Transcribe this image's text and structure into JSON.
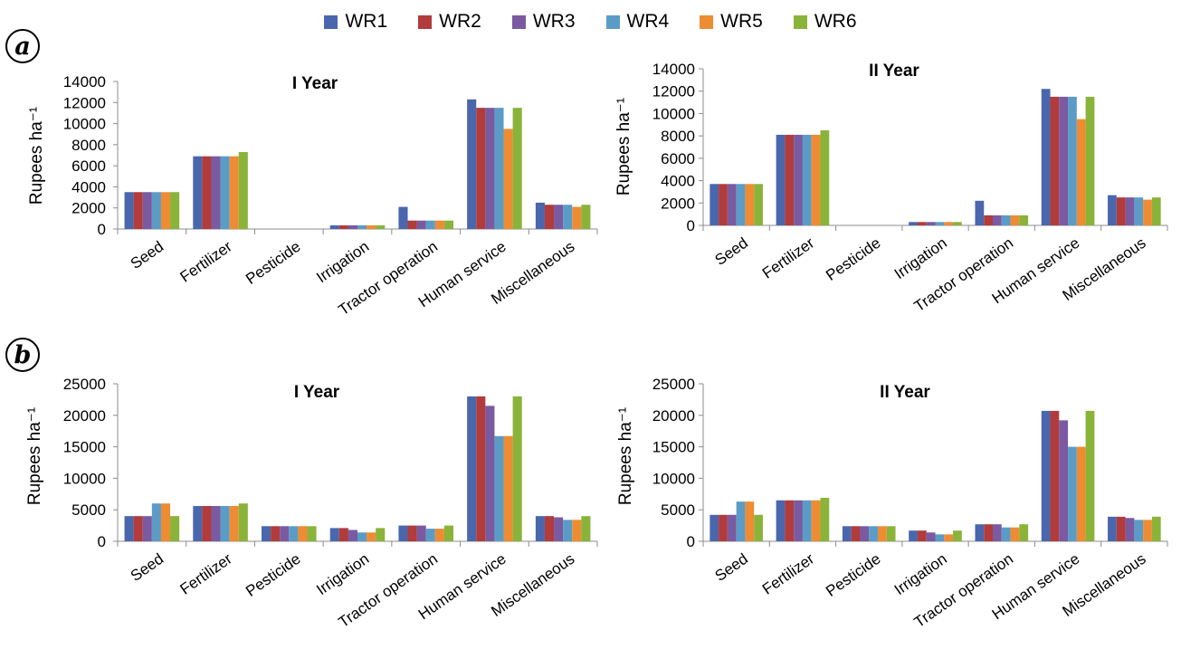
{
  "legend": {
    "items": [
      {
        "name": "WR1",
        "color": "#4a67ad"
      },
      {
        "name": "WR2",
        "color": "#b23b3b"
      },
      {
        "name": "WR3",
        "color": "#7a5aa1"
      },
      {
        "name": "WR4",
        "color": "#5b9cc7"
      },
      {
        "name": "WR5",
        "color": "#ee8c33"
      },
      {
        "name": "WR6",
        "color": "#8ab33a"
      }
    ]
  },
  "panels": {
    "a": "a",
    "b": "b"
  },
  "chart_data": [
    {
      "type": "bar",
      "panel": "a",
      "title": "I Year",
      "ylabel": "Rupees ha⁻¹",
      "ylim": [
        0,
        14000
      ],
      "yticks": [
        "0",
        "2000",
        "4000",
        "6000",
        "8000",
        "10000",
        "12000",
        "14000"
      ],
      "categories": [
        "Seed",
        "Fertilizer",
        "Pesticide",
        "Irrigation",
        "Tractor operation",
        "Human service",
        "Miscellaneous"
      ],
      "series": [
        {
          "name": "WR1",
          "values": [
            3500,
            6900,
            0,
            350,
            2100,
            12300,
            2500
          ]
        },
        {
          "name": "WR2",
          "values": [
            3500,
            6900,
            0,
            350,
            800,
            11500,
            2300
          ]
        },
        {
          "name": "WR3",
          "values": [
            3500,
            6900,
            0,
            350,
            800,
            11500,
            2300
          ]
        },
        {
          "name": "WR4",
          "values": [
            3500,
            6900,
            0,
            350,
            800,
            11500,
            2300
          ]
        },
        {
          "name": "WR5",
          "values": [
            3500,
            6900,
            0,
            350,
            800,
            9500,
            2100
          ]
        },
        {
          "name": "WR6",
          "values": [
            3500,
            7300,
            0,
            350,
            800,
            11500,
            2300
          ]
        }
      ]
    },
    {
      "type": "bar",
      "panel": "a",
      "title": "II Year",
      "ylabel": "Rupees ha⁻¹",
      "ylim": [
        0,
        14000
      ],
      "yticks": [
        "0",
        "2000",
        "4000",
        "6000",
        "8000",
        "10000",
        "12000",
        "14000"
      ],
      "categories": [
        "Seed",
        "Fertilizer",
        "Pesticide",
        "Irrigation",
        "Tractor operation",
        "Human service",
        "Miscellaneous"
      ],
      "series": [
        {
          "name": "WR1",
          "values": [
            3700,
            8100,
            0,
            300,
            2200,
            12200,
            2700
          ]
        },
        {
          "name": "WR2",
          "values": [
            3700,
            8100,
            0,
            300,
            900,
            11500,
            2500
          ]
        },
        {
          "name": "WR3",
          "values": [
            3700,
            8100,
            0,
            300,
            900,
            11500,
            2500
          ]
        },
        {
          "name": "WR4",
          "values": [
            3700,
            8100,
            0,
            300,
            900,
            11500,
            2500
          ]
        },
        {
          "name": "WR5",
          "values": [
            3700,
            8100,
            0,
            300,
            900,
            9500,
            2300
          ]
        },
        {
          "name": "WR6",
          "values": [
            3700,
            8500,
            0,
            300,
            900,
            11500,
            2500
          ]
        }
      ]
    },
    {
      "type": "bar",
      "panel": "b",
      "title": "I Year",
      "ylabel": "Rupees ha⁻¹",
      "ylim": [
        0,
        25000
      ],
      "yticks": [
        "0",
        "5000",
        "10000",
        "15000",
        "20000",
        "25000"
      ],
      "categories": [
        "Seed",
        "Fertilizer",
        "Pesticide",
        "Irrigation",
        "Tractor operation",
        "Human service",
        "Miscellaneous"
      ],
      "series": [
        {
          "name": "WR1",
          "values": [
            4000,
            5600,
            2400,
            2100,
            2500,
            23000,
            4000
          ]
        },
        {
          "name": "WR2",
          "values": [
            4000,
            5600,
            2400,
            2100,
            2500,
            23000,
            4000
          ]
        },
        {
          "name": "WR3",
          "values": [
            4000,
            5600,
            2400,
            1800,
            2500,
            21500,
            3800
          ]
        },
        {
          "name": "WR4",
          "values": [
            6000,
            5600,
            2400,
            1400,
            2000,
            16700,
            3400
          ]
        },
        {
          "name": "WR5",
          "values": [
            6000,
            5600,
            2400,
            1400,
            2000,
            16700,
            3400
          ]
        },
        {
          "name": "WR6",
          "values": [
            4000,
            6000,
            2400,
            2100,
            2500,
            23000,
            4000
          ]
        }
      ]
    },
    {
      "type": "bar",
      "panel": "b",
      "title": "II Year",
      "ylabel": "Rupees ha⁻¹",
      "ylim": [
        0,
        25000
      ],
      "yticks": [
        "0",
        "5000",
        "10000",
        "15000",
        "20000",
        "25000"
      ],
      "categories": [
        "Seed",
        "Fertilizer",
        "Pesticide",
        "Irrigation",
        "Tractor operation",
        "Human service",
        "Miscellaneous"
      ],
      "series": [
        {
          "name": "WR1",
          "values": [
            4200,
            6500,
            2400,
            1700,
            2700,
            20700,
            3900
          ]
        },
        {
          "name": "WR2",
          "values": [
            4200,
            6500,
            2400,
            1700,
            2700,
            20700,
            3900
          ]
        },
        {
          "name": "WR3",
          "values": [
            4200,
            6500,
            2400,
            1400,
            2700,
            19200,
            3700
          ]
        },
        {
          "name": "WR4",
          "values": [
            6300,
            6500,
            2400,
            1100,
            2200,
            15000,
            3400
          ]
        },
        {
          "name": "WR5",
          "values": [
            6300,
            6500,
            2400,
            1100,
            2200,
            15000,
            3400
          ]
        },
        {
          "name": "WR6",
          "values": [
            4200,
            6900,
            2400,
            1700,
            2700,
            20700,
            3900
          ]
        }
      ]
    }
  ]
}
